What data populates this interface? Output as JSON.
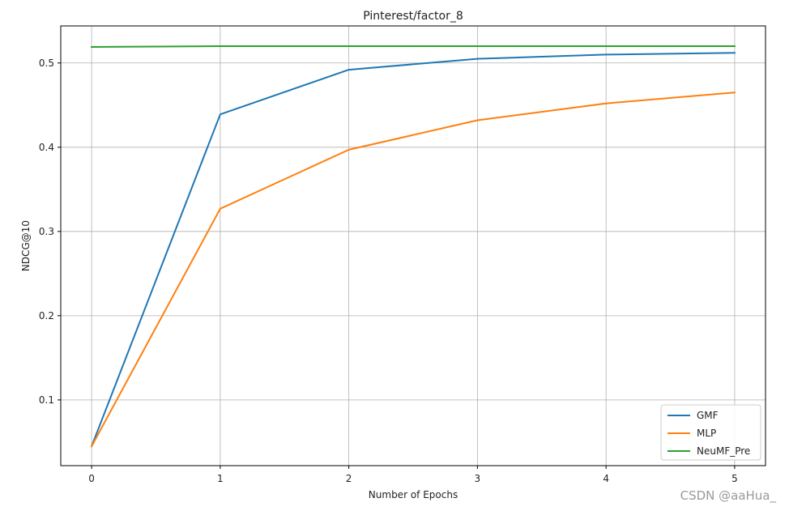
{
  "chart_data": {
    "type": "line",
    "title": "Pinterest/factor_8",
    "xlabel": "Number of Epochs",
    "ylabel": "NDCG@10",
    "x": [
      0,
      1,
      2,
      3,
      4,
      5
    ],
    "xlim": [
      -0.24,
      5.24
    ],
    "ylim": [
      0.022,
      0.544
    ],
    "xticks": [
      "0",
      "1",
      "2",
      "3",
      "4",
      "5"
    ],
    "yticks": [
      0.1,
      0.2,
      0.3,
      0.4,
      0.5
    ],
    "ytick_labels": [
      "0.1",
      "0.2",
      "0.3",
      "0.4",
      "0.5"
    ],
    "grid": true,
    "legend_position": "bottom-right",
    "series": [
      {
        "name": "GMF",
        "color": "#1f77b4",
        "values": [
          0.045,
          0.439,
          0.492,
          0.505,
          0.51,
          0.512
        ]
      },
      {
        "name": "MLP",
        "color": "#ff7f0e",
        "values": [
          0.045,
          0.327,
          0.397,
          0.432,
          0.452,
          0.465
        ]
      },
      {
        "name": "NeuMF_Pre",
        "color": "#2ca02c",
        "values": [
          0.519,
          0.52,
          0.52,
          0.52,
          0.52,
          0.52
        ]
      }
    ]
  },
  "watermark": "CSDN @aaHua_"
}
